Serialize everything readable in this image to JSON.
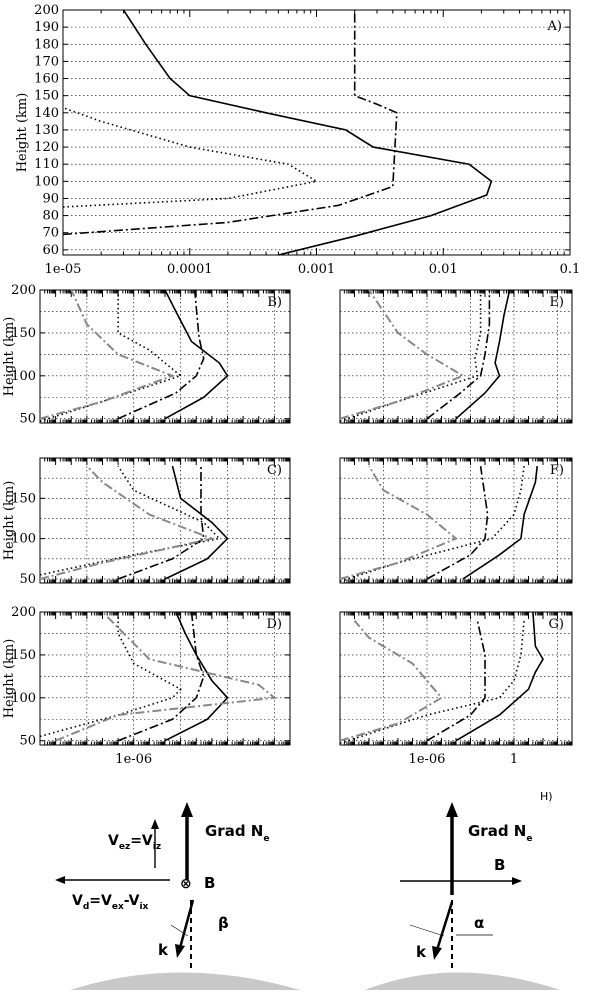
{
  "figure": {
    "diagram": {
      "panel_label": "H)",
      "left": {
        "grad_label": "Grad N",
        "grad_sub": "e",
        "vez_main": "V",
        "vez_sub1": "ez",
        "vez_eq": "=V",
        "vez_sub2": "iz",
        "vd_main": "V",
        "vd_sub1": "d",
        "vd_mid1": "=V",
        "vd_sub2": "ex",
        "vd_mid2": "-V",
        "vd_sub3": "ix",
        "b_symbol": "⊗",
        "b_label": "B",
        "beta_label": "β",
        "k_label": "k"
      },
      "right": {
        "grad_label": "Grad N",
        "grad_sub": "e",
        "b_label": "B",
        "alpha_label": "α",
        "k_label": "k"
      }
    }
  },
  "chart_data": [
    {
      "panel": "A)",
      "type": "line",
      "ylabel": "Height (km)",
      "xlabel": "",
      "x_scale": "log",
      "xlim": [
        1e-05,
        0.1
      ],
      "ylim": [
        57,
        200
      ],
      "x_ticks": [
        "1e-05",
        "0.0001",
        "0.001",
        "0.01",
        "0.1"
      ],
      "y_ticks": [
        60,
        70,
        80,
        90,
        100,
        110,
        120,
        130,
        140,
        150,
        160,
        170,
        180,
        190,
        200
      ],
      "grid": true,
      "series": [
        {
          "style": "solid",
          "color": "#000000",
          "points": [
            [
              0.0005,
              57
            ],
            [
              0.002,
              68
            ],
            [
              0.008,
              80
            ],
            [
              0.022,
              92
            ],
            [
              0.024,
              100
            ],
            [
              0.016,
              110
            ],
            [
              0.0028,
              120
            ],
            [
              0.0017,
              130
            ],
            [
              0.0004,
              140
            ],
            [
              0.0001,
              150
            ],
            [
              7e-05,
              160
            ],
            [
              4.5e-05,
              180
            ],
            [
              3e-05,
              200
            ]
          ]
        },
        {
          "style": "dashdot",
          "color": "#000000",
          "points": [
            [
              1e-05,
              69
            ],
            [
              0.0002,
              76
            ],
            [
              0.0015,
              86
            ],
            [
              0.004,
              97
            ],
            [
              0.0043,
              140
            ],
            [
              0.003,
              145
            ],
            [
              0.002,
              150
            ],
            [
              0.002,
              200
            ]
          ]
        },
        {
          "style": "dotted",
          "color": "#000000",
          "points": [
            [
              1e-05,
              85
            ],
            [
              0.0002,
              90
            ],
            [
              0.001,
              100
            ],
            [
              0.0006,
              110
            ],
            [
              0.0001,
              120
            ],
            [
              2e-05,
              135
            ],
            [
              1e-05,
              143
            ]
          ]
        }
      ]
    },
    {
      "panel": "B)",
      "type": "line",
      "ylabel": "Height (km)",
      "x_scale": "log",
      "xlim": [
        1e-12,
        10000.0
      ],
      "ylim": [
        45,
        200
      ],
      "y_ticks": [
        50,
        100,
        150,
        200
      ],
      "grid": true,
      "series": [
        {
          "style": "solid",
          "color": "#000000",
          "points": [
            [
              0.0001,
              50
            ],
            [
              0.03,
              75
            ],
            [
              1,
              100
            ],
            [
              0.3,
              115
            ],
            [
              0.005,
              140
            ],
            [
              0.0005,
              175
            ],
            [
              0.0001,
              200
            ]
          ]
        },
        {
          "style": "dashdot",
          "color": "#000000",
          "points": [
            [
              1e-07,
              50
            ],
            [
              0.0005,
              80
            ],
            [
              0.01,
              100
            ],
            [
              0.03,
              120
            ],
            [
              0.015,
              145
            ],
            [
              0.008,
              200
            ]
          ]
        },
        {
          "style": "dotted",
          "color": "#000000",
          "points": [
            [
              1e-12,
              47
            ],
            [
              1e-08,
              70
            ],
            [
              0.001,
              100
            ],
            [
              1e-05,
              130
            ],
            [
              1e-07,
              150
            ],
            [
              1e-07,
              200
            ]
          ]
        },
        {
          "style": "dashdot",
          "color": "#888888",
          "points": [
            [
              1e-12,
              50
            ],
            [
              1e-08,
              70
            ],
            [
              0.0003,
              100
            ],
            [
              1e-07,
              125
            ],
            [
              1e-09,
              160
            ],
            [
              1e-10,
              200
            ]
          ]
        }
      ]
    },
    {
      "panel": "E)",
      "type": "line",
      "x_scale": "log",
      "xlim": [
        1e-12,
        10000.0
      ],
      "ylim": [
        45,
        200
      ],
      "grid": true,
      "series": [
        {
          "style": "solid",
          "color": "#000000",
          "points": [
            [
              0.0001,
              50
            ],
            [
              0.01,
              80
            ],
            [
              0.1,
              100
            ],
            [
              0.05,
              115
            ],
            [
              0.1,
              140
            ],
            [
              0.2,
              170
            ],
            [
              0.5,
              200
            ]
          ]
        },
        {
          "style": "dashdot",
          "color": "#000000",
          "points": [
            [
              1e-06,
              50
            ],
            [
              0.0002,
              80
            ],
            [
              0.005,
              100
            ],
            [
              0.01,
              125
            ],
            [
              0.02,
              160
            ],
            [
              0.02,
              200
            ]
          ]
        },
        {
          "style": "dotted",
          "color": "#000000",
          "points": [
            [
              1e-12,
              47
            ],
            [
              1e-08,
              70
            ],
            [
              0.003,
              100
            ],
            [
              0.002,
              120
            ],
            [
              0.005,
              150
            ],
            [
              0.005,
              200
            ]
          ]
        },
        {
          "style": "dashdot",
          "color": "#888888",
          "points": [
            [
              1e-12,
              50
            ],
            [
              1e-08,
              70
            ],
            [
              0.0003,
              100
            ],
            [
              1e-06,
              125
            ],
            [
              1e-08,
              150
            ],
            [
              1e-10,
              200
            ]
          ]
        }
      ]
    },
    {
      "panel": "C)",
      "type": "line",
      "ylabel": "Height (km)",
      "x_scale": "log",
      "xlim": [
        1e-12,
        10000.0
      ],
      "ylim": [
        45,
        200
      ],
      "y_ticks": [
        50,
        100,
        150
      ],
      "grid": true,
      "series": [
        {
          "style": "solid",
          "color": "#000000",
          "points": [
            [
              0.0001,
              50
            ],
            [
              0.05,
              75
            ],
            [
              1,
              100
            ],
            [
              0.1,
              120
            ],
            [
              0.001,
              150
            ],
            [
              0.0003,
              190
            ]
          ]
        },
        {
          "style": "dashdot",
          "color": "#000000",
          "points": [
            [
              1e-07,
              50
            ],
            [
              0.0003,
              75
            ],
            [
              0.03,
              100
            ],
            [
              0.02,
              130
            ],
            [
              0.02,
              190
            ]
          ]
        },
        {
          "style": "dotted",
          "color": "#000000",
          "points": [
            [
              1e-12,
              55
            ],
            [
              1e-06,
              80
            ],
            [
              0.3,
              100
            ],
            [
              0.03,
              120
            ],
            [
              1e-06,
              160
            ],
            [
              1e-07,
              190
            ]
          ]
        },
        {
          "style": "dashdot",
          "color": "#888888",
          "points": [
            [
              1e-12,
              50
            ],
            [
              1e-08,
              70
            ],
            [
              0.1,
              100
            ],
            [
              1e-05,
              130
            ],
            [
              1e-08,
              170
            ],
            [
              1e-09,
              190
            ]
          ]
        }
      ]
    },
    {
      "panel": "F)",
      "type": "line",
      "x_scale": "log",
      "xlim": [
        1e-12,
        10000.0
      ],
      "ylim": [
        45,
        200
      ],
      "grid": true,
      "series": [
        {
          "style": "solid",
          "color": "#000000",
          "points": [
            [
              0.0003,
              50
            ],
            [
              0.1,
              80
            ],
            [
              3,
              100
            ],
            [
              5,
              130
            ],
            [
              30,
              170
            ],
            [
              40,
              190
            ]
          ]
        },
        {
          "style": "dashdot",
          "color": "#000000",
          "points": [
            [
              1e-06,
              50
            ],
            [
              0.001,
              80
            ],
            [
              0.01,
              100
            ],
            [
              0.015,
              130
            ],
            [
              0.005,
              190
            ]
          ]
        },
        {
          "style": "dotted",
          "color": "#000000",
          "points": [
            [
              1e-12,
              47
            ],
            [
              1e-08,
              70
            ],
            [
              0.03,
              100
            ],
            [
              1,
              130
            ],
            [
              3,
              160
            ],
            [
              5,
              190
            ]
          ]
        },
        {
          "style": "dashdot",
          "color": "#888888",
          "points": [
            [
              1e-12,
              50
            ],
            [
              1e-08,
              70
            ],
            [
              0.0001,
              100
            ],
            [
              1e-06,
              130
            ],
            [
              1e-09,
              160
            ],
            [
              1e-10,
              190
            ]
          ]
        }
      ]
    },
    {
      "panel": "D)",
      "type": "line",
      "ylabel": "Height (km)",
      "x_scale": "log",
      "xlim": [
        1e-12,
        10000.0
      ],
      "ylim": [
        45,
        200
      ],
      "x_ticks": [
        "1e-06"
      ],
      "y_ticks": [
        50,
        100,
        150,
        200
      ],
      "grid": true,
      "series": [
        {
          "style": "solid",
          "color": "#000000",
          "points": [
            [
              0.0001,
              50
            ],
            [
              0.05,
              75
            ],
            [
              1,
              100
            ],
            [
              0.1,
              120
            ],
            [
              0.01,
              150
            ],
            [
              0.002,
              175
            ],
            [
              0.0005,
              200
            ]
          ]
        },
        {
          "style": "dashdot",
          "color": "#000000",
          "points": [
            [
              1e-07,
              50
            ],
            [
              0.0003,
              75
            ],
            [
              0.01,
              100
            ],
            [
              0.03,
              125
            ],
            [
              0.01,
              150
            ],
            [
              0.005,
              200
            ]
          ]
        },
        {
          "style": "dotted",
          "color": "#000000",
          "points": [
            [
              1e-12,
              55
            ],
            [
              1e-07,
              80
            ],
            [
              0.0003,
              100
            ],
            [
              0.001,
              110
            ],
            [
              1e-06,
              140
            ],
            [
              1e-07,
              175
            ],
            [
              1e-07,
              200
            ]
          ]
        },
        {
          "style": "dashdot",
          "color": "#888888",
          "points": [
            [
              1e-11,
              50
            ],
            [
              1e-07,
              80
            ],
            [
              1000,
              100
            ],
            [
              100,
              115
            ],
            [
              1e-05,
              145
            ],
            [
              1e-08,
              200
            ]
          ]
        }
      ]
    },
    {
      "panel": "G)",
      "type": "line",
      "x_scale": "log",
      "xlim": [
        1e-12,
        10000.0
      ],
      "ylim": [
        45,
        200
      ],
      "x_ticks": [
        "1e-06",
        "1"
      ],
      "grid": true,
      "series": [
        {
          "style": "solid",
          "color": "#000000",
          "points": [
            [
              0.0001,
              50
            ],
            [
              0.1,
              80
            ],
            [
              10,
              110
            ],
            [
              30,
              130
            ],
            [
              100,
              145
            ],
            [
              30,
              160
            ],
            [
              20,
              200
            ]
          ]
        },
        {
          "style": "dashdot",
          "color": "#000000",
          "points": [
            [
              1e-06,
              50
            ],
            [
              0.001,
              80
            ],
            [
              0.01,
              100
            ],
            [
              0.01,
              150
            ],
            [
              0.003,
              190
            ]
          ]
        },
        {
          "style": "dotted",
          "color": "#000000",
          "points": [
            [
              1e-12,
              47
            ],
            [
              1e-06,
              80
            ],
            [
              0.1,
              100
            ],
            [
              1,
              120
            ],
            [
              3,
              150
            ],
            [
              5,
              190
            ]
          ]
        },
        {
          "style": "dashdot",
          "color": "#888888",
          "points": [
            [
              1e-12,
              50
            ],
            [
              1e-08,
              70
            ],
            [
              1e-05,
              100
            ],
            [
              1e-07,
              140
            ],
            [
              1e-10,
              170
            ],
            [
              1e-11,
              190
            ]
          ]
        }
      ]
    }
  ]
}
